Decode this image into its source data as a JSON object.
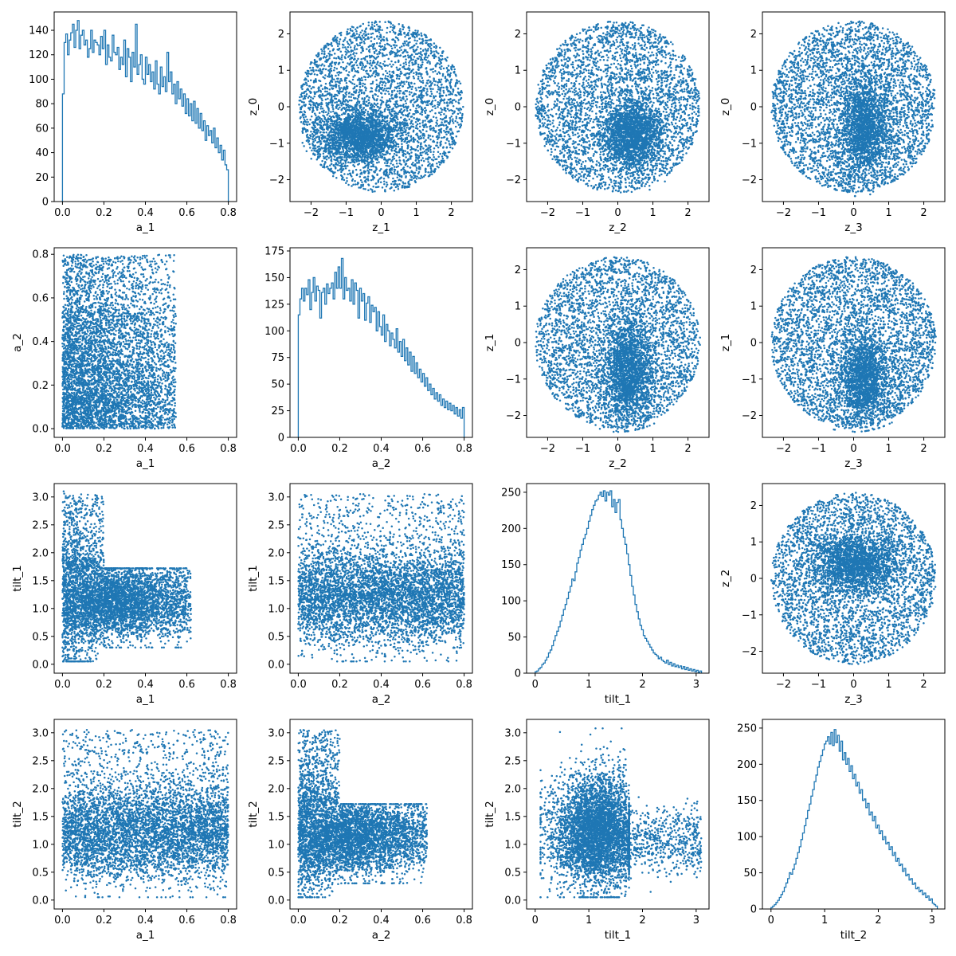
{
  "style": {
    "mark_color": "#1f77b4",
    "axis_color": "#000000",
    "background": "#ffffff"
  },
  "chart_data": [
    {
      "id": "h-a1",
      "type": "histogram",
      "var": "a_1",
      "xlabel": "a_1",
      "ylabel": "",
      "xlim": [
        -0.04,
        0.84
      ],
      "ylim": [
        0,
        155
      ],
      "xticks": [
        0.0,
        0.2,
        0.4,
        0.6,
        0.8
      ],
      "yticks": [
        0,
        20,
        40,
        60,
        80,
        100,
        120,
        140
      ],
      "tick_decimals": {
        "x": 1,
        "y": 0
      },
      "bins": {
        "start": 0.0,
        "width": 0.008,
        "counts": [
          88,
          130,
          137,
          120,
          132,
          138,
          145,
          126,
          140,
          148,
          125,
          136,
          140,
          128,
          132,
          118,
          125,
          140,
          122,
          132,
          130,
          128,
          120,
          135,
          125,
          140,
          112,
          128,
          118,
          115,
          136,
          122,
          120,
          126,
          108,
          118,
          112,
          132,
          102,
          125,
          118,
          98,
          122,
          110,
          145,
          104,
          112,
          120,
          100,
          96,
          118,
          104,
          112,
          98,
          106,
          92,
          115,
          96,
          88,
          110,
          94,
          102,
          90,
          122,
          98,
          106,
          88,
          96,
          80,
          98,
          84,
          92,
          78,
          88,
          72,
          84,
          70,
          80,
          66,
          82,
          64,
          76,
          60,
          72,
          58,
          66,
          50,
          62,
          54,
          58,
          48,
          60,
          44,
          52,
          40,
          46,
          34,
          42,
          30,
          26
        ]
      }
    },
    {
      "id": "s-z1-z0",
      "type": "scatter",
      "var_x": "z_1",
      "var_y": "z_0",
      "xlabel": "z_1",
      "ylabel": "z_0",
      "xlim": [
        -2.6,
        2.6
      ],
      "ylim": [
        -2.6,
        2.6
      ],
      "xticks": [
        -2,
        -1,
        0,
        1,
        2
      ],
      "yticks": [
        -2,
        -1,
        0,
        1,
        2
      ],
      "tick_decimals": {
        "x": 0,
        "y": 0
      },
      "gen": "disk",
      "n": 5200,
      "seed": 11,
      "bias": {
        "x": -0.6,
        "y": -0.8,
        "frac": 0.35,
        "sx": 0.55,
        "sy": 0.35
      }
    },
    {
      "id": "s-z2-z0",
      "type": "scatter",
      "var_x": "z_2",
      "var_y": "z_0",
      "xlabel": "z_2",
      "ylabel": "z_0",
      "xlim": [
        -2.6,
        2.6
      ],
      "ylim": [
        -2.6,
        2.6
      ],
      "xticks": [
        -2,
        -1,
        0,
        1,
        2
      ],
      "yticks": [
        -2,
        -1,
        0,
        1,
        2
      ],
      "tick_decimals": {
        "x": 0,
        "y": 0
      },
      "gen": "disk",
      "n": 5200,
      "seed": 23,
      "bias": {
        "x": 0.4,
        "y": -0.8,
        "frac": 0.35,
        "sx": 0.4,
        "sy": 0.45
      }
    },
    {
      "id": "s-z3-z0",
      "type": "scatter",
      "var_x": "z_3",
      "var_y": "z_0",
      "xlabel": "z_3",
      "ylabel": "z_0",
      "xlim": [
        -2.6,
        2.6
      ],
      "ylim": [
        -2.6,
        2.6
      ],
      "xticks": [
        -2,
        -1,
        0,
        1,
        2
      ],
      "yticks": [
        -2,
        -1,
        0,
        1,
        2
      ],
      "tick_decimals": {
        "x": 0,
        "y": 0
      },
      "gen": "disk",
      "n": 5200,
      "seed": 37,
      "bias": {
        "x": 0.3,
        "y": -0.5,
        "frac": 0.3,
        "sx": 0.35,
        "sy": 0.7
      }
    },
    {
      "id": "s-a1-a2",
      "type": "scatter",
      "var_x": "a_1",
      "var_y": "a_2",
      "xlabel": "a_1",
      "ylabel": "a_2",
      "xlim": [
        -0.04,
        0.84
      ],
      "ylim": [
        -0.04,
        0.83
      ],
      "xticks": [
        0.0,
        0.2,
        0.4,
        0.6,
        0.8
      ],
      "yticks": [
        0.0,
        0.2,
        0.4,
        0.6,
        0.8
      ],
      "tick_decimals": {
        "x": 1,
        "y": 1
      },
      "gen": "spin",
      "n": 5200,
      "seed": 41
    },
    {
      "id": "h-a2",
      "type": "histogram",
      "var": "a_2",
      "xlabel": "a_2",
      "ylabel": "",
      "xlim": [
        -0.04,
        0.84
      ],
      "ylim": [
        0,
        178
      ],
      "xticks": [
        0.0,
        0.2,
        0.4,
        0.6,
        0.8
      ],
      "yticks": [
        0,
        25,
        50,
        75,
        100,
        125,
        150,
        175
      ],
      "tick_decimals": {
        "x": 1,
        "y": 0
      },
      "bins": {
        "start": 0.0,
        "width": 0.008,
        "counts": [
          115,
          130,
          140,
          128,
          140,
          134,
          148,
          120,
          136,
          150,
          128,
          142,
          138,
          112,
          136,
          140,
          125,
          144,
          135,
          140,
          145,
          130,
          155,
          140,
          160,
          140,
          168,
          130,
          150,
          138,
          140,
          128,
          148,
          125,
          145,
          138,
          112,
          140,
          128,
          135,
          110,
          126,
          132,
          108,
          124,
          118,
          122,
          100,
          118,
          104,
          96,
          115,
          90,
          106,
          100,
          86,
          98,
          92,
          84,
          102,
          80,
          90,
          76,
          92,
          72,
          84,
          68,
          80,
          62,
          76,
          60,
          70,
          56,
          64,
          52,
          60,
          48,
          56,
          44,
          50,
          40,
          46,
          36,
          42,
          34,
          40,
          30,
          36,
          28,
          34,
          26,
          32,
          25,
          30,
          22,
          28,
          20,
          26,
          18,
          28
        ]
      }
    },
    {
      "id": "s-z2-z1",
      "type": "scatter",
      "var_x": "z_2",
      "var_y": "z_1",
      "xlabel": "z_2",
      "ylabel": "z_1",
      "xlim": [
        -2.6,
        2.6
      ],
      "ylim": [
        -2.6,
        2.6
      ],
      "xticks": [
        -2,
        -1,
        0,
        1,
        2
      ],
      "yticks": [
        -2,
        -1,
        0,
        1,
        2
      ],
      "tick_decimals": {
        "x": 0,
        "y": 0
      },
      "gen": "disk",
      "n": 5200,
      "seed": 53,
      "bias": {
        "x": 0.3,
        "y": -0.8,
        "frac": 0.35,
        "sx": 0.35,
        "sy": 0.7
      }
    },
    {
      "id": "s-z3-z1",
      "type": "scatter",
      "var_x": "z_3",
      "var_y": "z_1",
      "xlabel": "z_3",
      "ylabel": "z_1",
      "xlim": [
        -2.6,
        2.6
      ],
      "ylim": [
        -2.6,
        2.6
      ],
      "xticks": [
        -2,
        -1,
        0,
        1,
        2
      ],
      "yticks": [
        -2,
        -1,
        0,
        1,
        2
      ],
      "tick_decimals": {
        "x": 0,
        "y": 0
      },
      "gen": "disk",
      "n": 5200,
      "seed": 67,
      "bias": {
        "x": 0.3,
        "y": -1.0,
        "frac": 0.3,
        "sx": 0.35,
        "sy": 0.6
      }
    },
    {
      "id": "s-a1-tilt1",
      "type": "scatter",
      "var_x": "a_1",
      "var_y": "tilt_1",
      "xlabel": "a_1",
      "ylabel": "tilt_1",
      "xlim": [
        -0.04,
        0.84
      ],
      "ylim": [
        -0.16,
        3.24
      ],
      "xticks": [
        0.0,
        0.2,
        0.4,
        0.6,
        0.8
      ],
      "yticks": [
        0.0,
        0.5,
        1.0,
        1.5,
        2.0,
        2.5,
        3.0
      ],
      "tick_decimals": {
        "x": 1,
        "y": 1
      },
      "gen": "tilt_vs_a",
      "n": 5200,
      "seed": 71
    },
    {
      "id": "s-a2-tilt1",
      "type": "scatter",
      "var_x": "a_2",
      "var_y": "tilt_1",
      "xlabel": "a_2",
      "ylabel": "tilt_1",
      "xlim": [
        -0.04,
        0.84
      ],
      "ylim": [
        -0.16,
        3.24
      ],
      "xticks": [
        0.0,
        0.2,
        0.4,
        0.6,
        0.8
      ],
      "yticks": [
        0.0,
        0.5,
        1.0,
        1.5,
        2.0,
        2.5,
        3.0
      ],
      "tick_decimals": {
        "x": 1,
        "y": 1
      },
      "gen": "tilt_vs_a_other",
      "n": 5200,
      "seed": 83
    },
    {
      "id": "h-tilt1",
      "type": "histogram",
      "var": "tilt_1",
      "xlabel": "tilt_1",
      "ylabel": "",
      "xlim": [
        -0.16,
        3.24
      ],
      "ylim": [
        0,
        262
      ],
      "xticks": [
        0,
        1,
        2,
        3
      ],
      "yticks": [
        0,
        50,
        100,
        150,
        200,
        250
      ],
      "tick_decimals": {
        "x": 0,
        "y": 0
      },
      "bins": {
        "start": 0.0,
        "width": 0.031,
        "counts": [
          2,
          3,
          6,
          8,
          12,
          14,
          18,
          22,
          28,
          32,
          38,
          45,
          52,
          58,
          64,
          72,
          80,
          88,
          95,
          103,
          112,
          120,
          130,
          128,
          140,
          152,
          160,
          170,
          178,
          186,
          192,
          200,
          210,
          218,
          226,
          232,
          238,
          240,
          246,
          250,
          244,
          252,
          238,
          250,
          246,
          252,
          230,
          240,
          222,
          236,
          240,
          212,
          200,
          188,
          178,
          165,
          150,
          135,
          120,
          108,
          95,
          85,
          75,
          66,
          60,
          52,
          48,
          44,
          40,
          36,
          32,
          28,
          26,
          24,
          20,
          22,
          18,
          16,
          14,
          18,
          12,
          15,
          10,
          13,
          9,
          11,
          8,
          10,
          6,
          9,
          5,
          8,
          4,
          6,
          3,
          5,
          2,
          4,
          1,
          3
        ]
      }
    },
    {
      "id": "s-z3-z2",
      "type": "scatter",
      "var_x": "z_3",
      "var_y": "z_2",
      "xlabel": "z_3",
      "ylabel": "z_2",
      "xlim": [
        -2.6,
        2.6
      ],
      "ylim": [
        -2.6,
        2.6
      ],
      "xticks": [
        -2,
        -1,
        0,
        1,
        2
      ],
      "yticks": [
        -2,
        -1,
        0,
        1,
        2
      ],
      "tick_decimals": {
        "x": 0,
        "y": 0
      },
      "gen": "disk",
      "n": 5200,
      "seed": 97,
      "bias": {
        "x": 0.1,
        "y": 0.4,
        "frac": 0.35,
        "sx": 0.6,
        "sy": 0.4
      }
    },
    {
      "id": "s-a1-tilt2",
      "type": "scatter",
      "var_x": "a_1",
      "var_y": "tilt_2",
      "xlabel": "a_1",
      "ylabel": "tilt_2",
      "xlim": [
        -0.04,
        0.84
      ],
      "ylim": [
        -0.16,
        3.24
      ],
      "xticks": [
        0.0,
        0.2,
        0.4,
        0.6,
        0.8
      ],
      "yticks": [
        0.0,
        0.5,
        1.0,
        1.5,
        2.0,
        2.5,
        3.0
      ],
      "tick_decimals": {
        "x": 1,
        "y": 1
      },
      "gen": "tilt_vs_a_other",
      "n": 5200,
      "seed": 101
    },
    {
      "id": "s-a2-tilt2",
      "type": "scatter",
      "var_x": "a_2",
      "var_y": "tilt_2",
      "xlabel": "a_2",
      "ylabel": "tilt_2",
      "xlim": [
        -0.04,
        0.84
      ],
      "ylim": [
        -0.16,
        3.24
      ],
      "xticks": [
        0.0,
        0.2,
        0.4,
        0.6,
        0.8
      ],
      "yticks": [
        0.0,
        0.5,
        1.0,
        1.5,
        2.0,
        2.5,
        3.0
      ],
      "tick_decimals": {
        "x": 1,
        "y": 1
      },
      "gen": "tilt_vs_a",
      "n": 5200,
      "seed": 113
    },
    {
      "id": "s-tilt1-tilt2",
      "type": "scatter",
      "var_x": "tilt_1",
      "var_y": "tilt_2",
      "xlabel": "tilt_1",
      "ylabel": "tilt_2",
      "xlim": [
        -0.16,
        3.24
      ],
      "ylim": [
        -0.16,
        3.24
      ],
      "xticks": [
        0,
        1,
        2,
        3
      ],
      "yticks": [
        0.0,
        0.5,
        1.0,
        1.5,
        2.0,
        2.5,
        3.0
      ],
      "tick_decimals": {
        "x": 0,
        "y": 1
      },
      "gen": "tilt_tilt",
      "n": 5200,
      "seed": 127
    },
    {
      "id": "h-tilt2",
      "type": "histogram",
      "var": "tilt_2",
      "xlabel": "tilt_2",
      "ylabel": "",
      "xlim": [
        -0.16,
        3.24
      ],
      "ylim": [
        0,
        262
      ],
      "xticks": [
        0,
        1,
        2,
        3
      ],
      "yticks": [
        0,
        50,
        100,
        150,
        200,
        250
      ],
      "tick_decimals": {
        "x": 0,
        "y": 0
      },
      "bins": {
        "start": 0.0,
        "width": 0.031,
        "counts": [
          2,
          4,
          6,
          9,
          12,
          16,
          20,
          24,
          30,
          36,
          42,
          50,
          48,
          55,
          62,
          70,
          78,
          86,
          96,
          105,
          115,
          125,
          136,
          145,
          156,
          165,
          176,
          185,
          196,
          204,
          212,
          220,
          228,
          232,
          238,
          228,
          244,
          226,
          248,
          230,
          240,
          218,
          232,
          206,
          216,
          200,
          208,
          190,
          198,
          180,
          186,
          170,
          175,
          160,
          165,
          150,
          152,
          140,
          146,
          130,
          134,
          122,
          128,
          112,
          116,
          104,
          108,
          96,
          100,
          90,
          92,
          82,
          86,
          74,
          78,
          66,
          70,
          60,
          62,
          52,
          56,
          46,
          48,
          40,
          42,
          34,
          36,
          28,
          30,
          24,
          26,
          20,
          22,
          16,
          18,
          12,
          14,
          8,
          6,
          4
        ]
      }
    }
  ]
}
